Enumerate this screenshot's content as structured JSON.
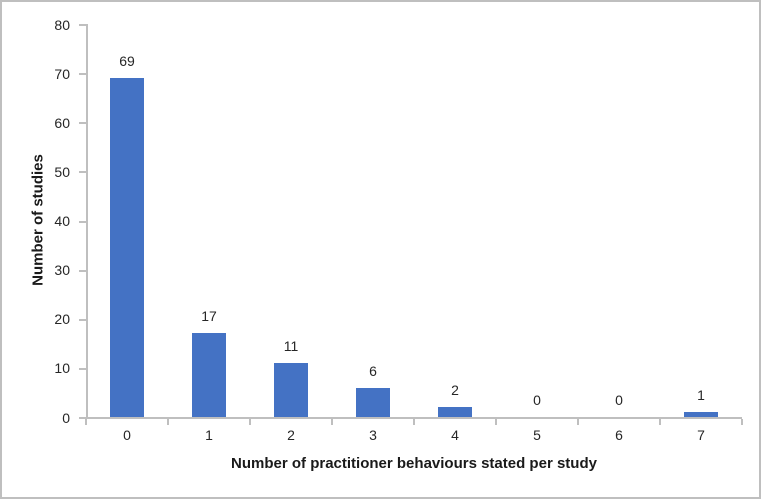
{
  "chart_data": {
    "type": "bar",
    "title": "",
    "categories": [
      "0",
      "1",
      "2",
      "3",
      "4",
      "5",
      "6",
      "7"
    ],
    "values": [
      69,
      17,
      11,
      6,
      2,
      0,
      0,
      1
    ],
    "data_labels": [
      "69",
      "17",
      "11",
      "6",
      "2",
      "0",
      "0",
      "1"
    ],
    "xlabel": "Number of practitioner behaviours stated per study",
    "ylabel": "Number of studies",
    "ylim": [
      0,
      80
    ],
    "yticks": [
      0,
      10,
      20,
      30,
      40,
      50,
      60,
      70,
      80
    ],
    "grid": "off",
    "legend": "none",
    "bar_color": "#4472C4",
    "axis_color": "#BFBFBF",
    "label_color": "#262626",
    "title_color": "#1A1A1A",
    "border_color": "#BFBFBF",
    "background_color": "#FFFFFF"
  }
}
